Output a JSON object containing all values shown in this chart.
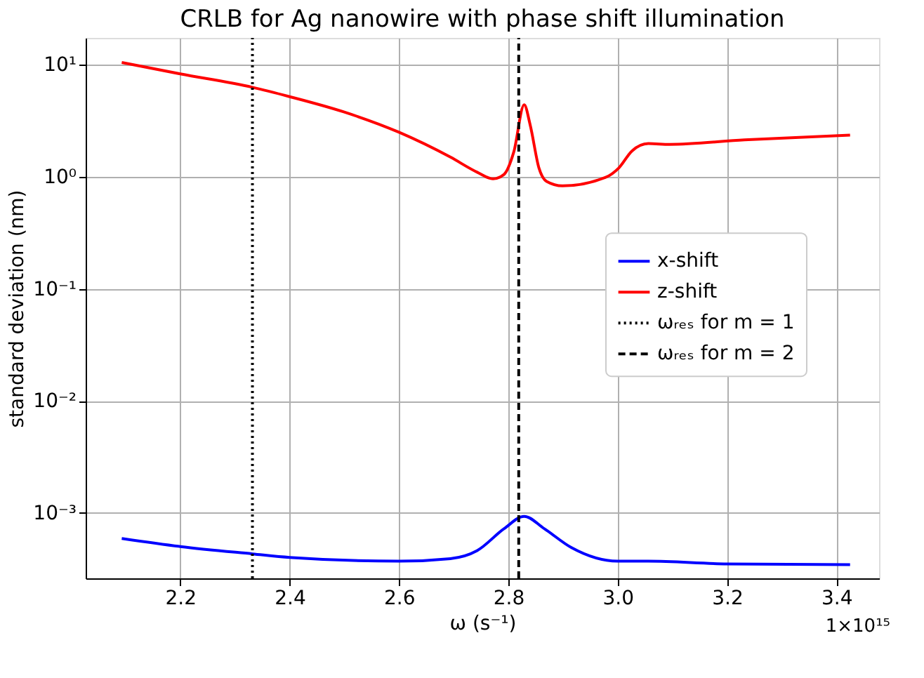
{
  "chart_data": {
    "type": "line",
    "title": "CRLB for Ag nanowire with phase shift illumination",
    "xlabel": "ω (s⁻¹)",
    "ylabel": "standard deviation (nm)",
    "annotations": [
      "1×10¹⁵"
    ],
    "log": "y",
    "grid": true,
    "legend": "right",
    "marker": "none",
    "line_style": "solid",
    "xlim": [
      2.027,
      3.478
    ],
    "xticks": [
      2.2,
      2.4,
      2.6,
      2.8,
      {
        "value": 3.0,
        "label": "3.0"
      },
      3.2,
      3.4
    ],
    "ylim": [
      0.00026,
      17.4
    ],
    "yticks": [
      {
        "value": 10,
        "label": "10¹"
      },
      {
        "value": 1,
        "label": "10⁰"
      },
      {
        "value": 0.1,
        "label": "10⁻¹"
      },
      {
        "value": 0.01,
        "label": "10⁻²"
      },
      {
        "value": 0.001,
        "label": "10⁻³"
      }
    ],
    "series": [
      {
        "name": "x-shift",
        "color": "#0000ff",
        "x": [
          2.093,
          2.2,
          2.332,
          2.4,
          2.6,
          2.694,
          2.743,
          2.792,
          2.829,
          2.866,
          2.915,
          3.0,
          3.056,
          3.2,
          3.425
        ],
        "values": [
          0.00059,
          0.0005,
          0.00043,
          0.0004,
          0.00037,
          0.00039,
          0.00046,
          0.00072,
          0.00093,
          0.00072,
          0.00049,
          0.00037,
          0.00037,
          0.00035,
          0.000345
        ]
      },
      {
        "name": "z-shift",
        "color": "#ff0000",
        "x": [
          2.093,
          2.2,
          2.332,
          2.4,
          2.499,
          2.6,
          2.694,
          2.743,
          2.772,
          2.792,
          2.81,
          2.829,
          2.84,
          2.856,
          2.87,
          2.899,
          2.978,
          3.002,
          3.026,
          3.056,
          3.095,
          3.232,
          3.425
        ],
        "values": [
          10.5,
          8.3,
          6.3,
          5.2,
          3.8,
          2.5,
          1.5,
          1.1,
          0.96,
          1.05,
          1.67,
          4.4,
          2.9,
          1.2,
          0.91,
          0.83,
          0.99,
          1.2,
          1.7,
          1.98,
          1.95,
          2.14,
          2.36
        ]
      },
      {
        "name": "ωᵣₑₛ for m = 1",
        "color": "#000000",
        "line_style": "dotted",
        "x": [
          2.332,
          2.332
        ],
        "values": [
          0.00026,
          17.4
        ]
      },
      {
        "name": "ωᵣₑₛ for m = 2",
        "color": "#000000",
        "line_style": "dashed",
        "x": [
          2.819,
          2.819
        ],
        "values": [
          0.00026,
          17.4
        ]
      }
    ]
  }
}
